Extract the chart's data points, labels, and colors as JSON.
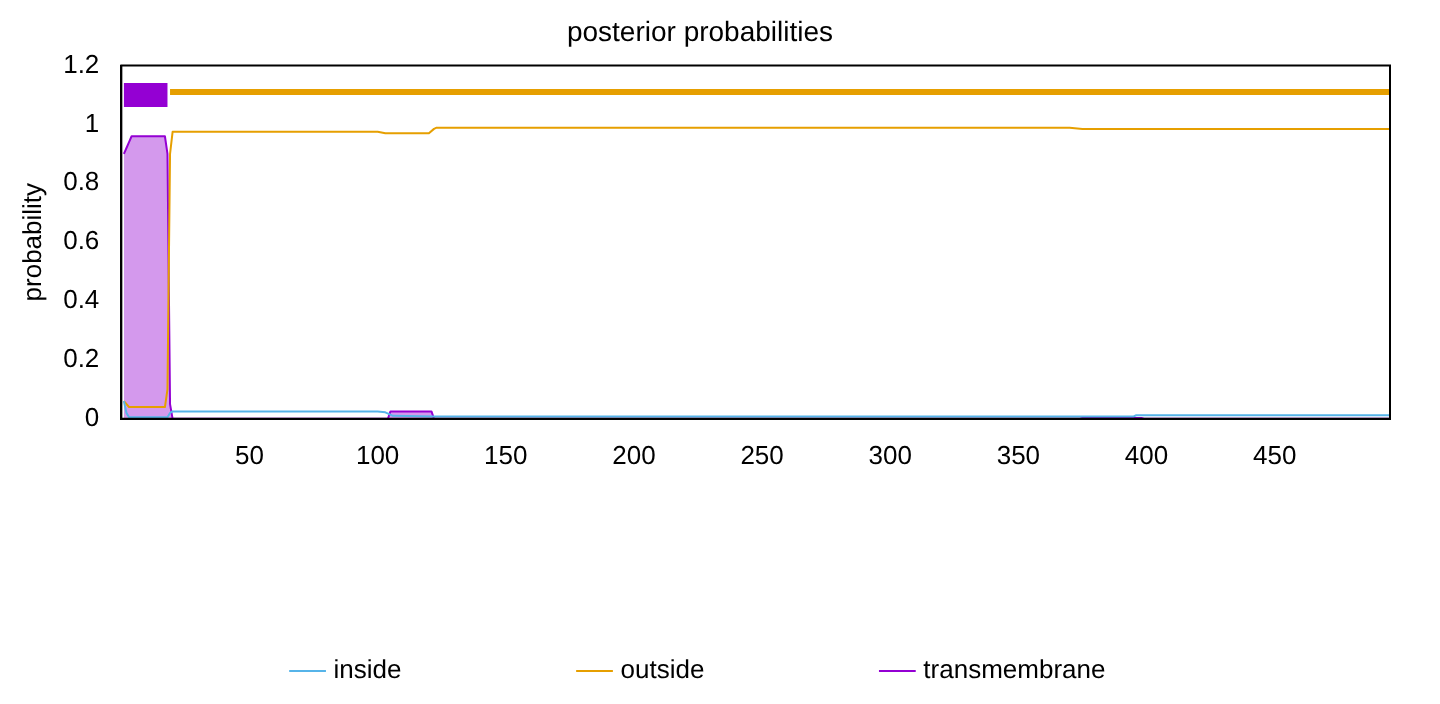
{
  "chart_data": {
    "type": "line",
    "title": "posterior probabilities",
    "ylabel": "probability",
    "legend": "bottom",
    "grid": false,
    "marker": "none",
    "line_style": "solid",
    "xlim": [
      0,
      495
    ],
    "xticks": [
      50,
      100,
      150,
      200,
      250,
      300,
      350,
      400,
      450
    ],
    "ylim": [
      0,
      1.2
    ],
    "yticks": [
      0,
      0.2,
      0.4,
      0.6,
      0.8,
      1,
      1.2
    ],
    "series": [
      {
        "name": "transmembrane",
        "type": "area",
        "color": "#9400d3",
        "x": [
          1,
          2,
          3,
          4,
          17,
          18,
          19,
          20,
          104,
          105,
          121,
          122,
          123,
          374,
          375,
          398,
          399,
          495
        ],
        "values": [
          0.9,
          0.92,
          0.94,
          0.96,
          0.96,
          0.9,
          0.05,
          0,
          0,
          0.025,
          0.025,
          0,
          0,
          0,
          0.003,
          0.003,
          0,
          0
        ]
      },
      {
        "name": "inside",
        "color": "#56b4e9",
        "x": [
          1,
          2,
          3,
          18,
          19,
          20,
          100,
          103,
          106,
          122,
          123,
          395,
          396,
          495
        ],
        "values": [
          0.06,
          0.02,
          0.005,
          0.005,
          0.02,
          0.025,
          0.025,
          0.022,
          0.01,
          0.008,
          0.008,
          0.008,
          0.012,
          0.012
        ]
      },
      {
        "name": "outside",
        "color": "#e69f00",
        "x": [
          1,
          3,
          4,
          17,
          18,
          19,
          20,
          100,
          103,
          120,
          122,
          123,
          370,
          375,
          495
        ],
        "values": [
          0.06,
          0.04,
          0.04,
          0.04,
          0.1,
          0.9,
          0.975,
          0.975,
          0.97,
          0.97,
          0.985,
          0.989,
          0.989,
          0.985,
          0.985
        ]
      },
      {
        "color": "#9400d3",
        "x": [
          1,
          18
        ],
        "values": [
          1.1,
          1.1
        ]
      },
      {
        "color": "#e69f00",
        "x": [
          19,
          495
        ],
        "values": [
          1.11,
          1.11
        ]
      }
    ]
  }
}
